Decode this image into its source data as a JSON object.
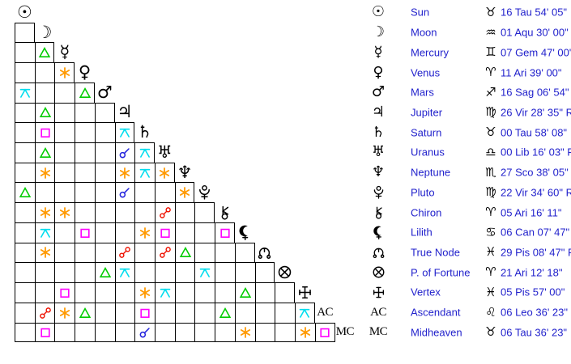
{
  "labels": {
    "ac": "AC",
    "mc": "MC",
    "retrograde_suffix": " R"
  },
  "colors": {
    "background": "#ffffff",
    "grid_line": "#000000",
    "glyph_text": "#000000",
    "planet_text": "#2222cc",
    "aspects": {
      "conjunction": "#2222dd",
      "sextile": "#ff9900",
      "square": "#ff00ff",
      "trine": "#00cc00",
      "opposition": "#ee1100",
      "quincunx": "#00ddee"
    }
  },
  "planets": [
    {
      "id": "sun",
      "name": "Sun",
      "icon": "sun-icon",
      "sign_icon": "taurus-icon",
      "position": "16 Tau 54' 05\"",
      "retrograde": false
    },
    {
      "id": "moon",
      "name": "Moon",
      "icon": "moon-icon",
      "sign_icon": "aquarius-icon",
      "position": "01 Aqu 30' 00\"",
      "retrograde": false
    },
    {
      "id": "mercury",
      "name": "Mercury",
      "icon": "mercury-icon",
      "sign_icon": "gemini-icon",
      "position": "07 Gem 47' 00\"",
      "retrograde": false
    },
    {
      "id": "venus",
      "name": "Venus",
      "icon": "venus-icon",
      "sign_icon": "aries-icon",
      "position": "11 Ari 39' 00\"",
      "retrograde": false
    },
    {
      "id": "mars",
      "name": "Mars",
      "icon": "mars-icon",
      "sign_icon": "sagittarius-icon",
      "position": "16 Sag 06' 54\"",
      "retrograde": true
    },
    {
      "id": "jupiter",
      "name": "Jupiter",
      "icon": "jupiter-icon",
      "sign_icon": "virgo-icon",
      "position": "26 Vir 28' 35\"",
      "retrograde": true
    },
    {
      "id": "saturn",
      "name": "Saturn",
      "icon": "saturn-icon",
      "sign_icon": "taurus-icon",
      "position": "00 Tau 58' 08\"",
      "retrograde": false
    },
    {
      "id": "uranus",
      "name": "Uranus",
      "icon": "uranus-icon",
      "sign_icon": "libra-icon",
      "position": "00 Lib 16' 03\"",
      "retrograde": true
    },
    {
      "id": "neptune",
      "name": "Neptune",
      "icon": "neptune-icon",
      "sign_icon": "scorpio-icon",
      "position": "27 Sco 38' 05\"",
      "retrograde": true
    },
    {
      "id": "pluto",
      "name": "Pluto",
      "icon": "pluto-icon",
      "sign_icon": "virgo-icon",
      "position": "22 Vir 34' 60\"",
      "retrograde": true
    },
    {
      "id": "chiron",
      "name": "Chiron",
      "icon": "chiron-icon",
      "sign_icon": "aries-icon",
      "position": "05 Ari 16' 11\"",
      "retrograde": false
    },
    {
      "id": "lilith",
      "name": "Lilith",
      "icon": "lilith-icon",
      "sign_icon": "cancer-icon",
      "position": "06 Can 07' 47\"",
      "retrograde": false
    },
    {
      "id": "true-node",
      "name": "True Node",
      "icon": "true-node-icon",
      "sign_icon": "pisces-icon",
      "position": "29 Pis 08' 47\"",
      "retrograde": true
    },
    {
      "id": "fortune",
      "name": "P. of Fortune",
      "icon": "fortune-icon",
      "sign_icon": "aries-icon",
      "position": "21 Ari 12' 18\"",
      "retrograde": false
    },
    {
      "id": "vertex",
      "name": "Vertex",
      "icon": "vertex-icon",
      "sign_icon": "pisces-icon",
      "position": "05 Pis 57' 00\"",
      "retrograde": false
    },
    {
      "id": "ac",
      "name": "Ascendant",
      "icon": "ac-label",
      "sign_icon": "leo-icon",
      "position": "06 Leo 36' 23\"",
      "retrograde": false
    },
    {
      "id": "mc",
      "name": "Midheaven",
      "icon": "mc-label",
      "sign_icon": "taurus-icon",
      "position": "06 Tau 36' 23\"",
      "retrograde": false
    }
  ],
  "aspect_grid": {
    "aspects": [
      {
        "row": 3,
        "col": 2,
        "aspect": "trine"
      },
      {
        "row": 4,
        "col": 3,
        "aspect": "sextile"
      },
      {
        "row": 5,
        "col": 1,
        "aspect": "quincunx"
      },
      {
        "row": 5,
        "col": 4,
        "aspect": "trine"
      },
      {
        "row": 6,
        "col": 2,
        "aspect": "trine"
      },
      {
        "row": 7,
        "col": 2,
        "aspect": "square"
      },
      {
        "row": 7,
        "col": 6,
        "aspect": "quincunx"
      },
      {
        "row": 8,
        "col": 2,
        "aspect": "trine"
      },
      {
        "row": 8,
        "col": 6,
        "aspect": "conjunction"
      },
      {
        "row": 8,
        "col": 7,
        "aspect": "quincunx"
      },
      {
        "row": 9,
        "col": 2,
        "aspect": "sextile"
      },
      {
        "row": 9,
        "col": 6,
        "aspect": "sextile"
      },
      {
        "row": 9,
        "col": 7,
        "aspect": "quincunx"
      },
      {
        "row": 9,
        "col": 8,
        "aspect": "sextile"
      },
      {
        "row": 10,
        "col": 1,
        "aspect": "trine"
      },
      {
        "row": 10,
        "col": 6,
        "aspect": "conjunction"
      },
      {
        "row": 10,
        "col": 9,
        "aspect": "sextile"
      },
      {
        "row": 11,
        "col": 2,
        "aspect": "sextile"
      },
      {
        "row": 11,
        "col": 3,
        "aspect": "sextile"
      },
      {
        "row": 11,
        "col": 8,
        "aspect": "opposition"
      },
      {
        "row": 12,
        "col": 2,
        "aspect": "quincunx"
      },
      {
        "row": 12,
        "col": 4,
        "aspect": "square"
      },
      {
        "row": 12,
        "col": 7,
        "aspect": "sextile"
      },
      {
        "row": 12,
        "col": 8,
        "aspect": "square"
      },
      {
        "row": 12,
        "col": 11,
        "aspect": "square"
      },
      {
        "row": 13,
        "col": 2,
        "aspect": "sextile"
      },
      {
        "row": 13,
        "col": 6,
        "aspect": "opposition"
      },
      {
        "row": 13,
        "col": 8,
        "aspect": "opposition"
      },
      {
        "row": 13,
        "col": 9,
        "aspect": "trine"
      },
      {
        "row": 14,
        "col": 5,
        "aspect": "trine"
      },
      {
        "row": 14,
        "col": 6,
        "aspect": "quincunx"
      },
      {
        "row": 14,
        "col": 10,
        "aspect": "quincunx"
      },
      {
        "row": 15,
        "col": 3,
        "aspect": "square"
      },
      {
        "row": 15,
        "col": 7,
        "aspect": "sextile"
      },
      {
        "row": 15,
        "col": 8,
        "aspect": "quincunx"
      },
      {
        "row": 15,
        "col": 12,
        "aspect": "trine"
      },
      {
        "row": 16,
        "col": 2,
        "aspect": "opposition"
      },
      {
        "row": 16,
        "col": 3,
        "aspect": "sextile"
      },
      {
        "row": 16,
        "col": 4,
        "aspect": "trine"
      },
      {
        "row": 16,
        "col": 7,
        "aspect": "square"
      },
      {
        "row": 16,
        "col": 11,
        "aspect": "trine"
      },
      {
        "row": 16,
        "col": 15,
        "aspect": "quincunx"
      },
      {
        "row": 17,
        "col": 2,
        "aspect": "square"
      },
      {
        "row": 17,
        "col": 7,
        "aspect": "conjunction"
      },
      {
        "row": 17,
        "col": 12,
        "aspect": "sextile"
      },
      {
        "row": 17,
        "col": 15,
        "aspect": "sextile"
      },
      {
        "row": 17,
        "col": 16,
        "aspect": "square"
      }
    ]
  }
}
